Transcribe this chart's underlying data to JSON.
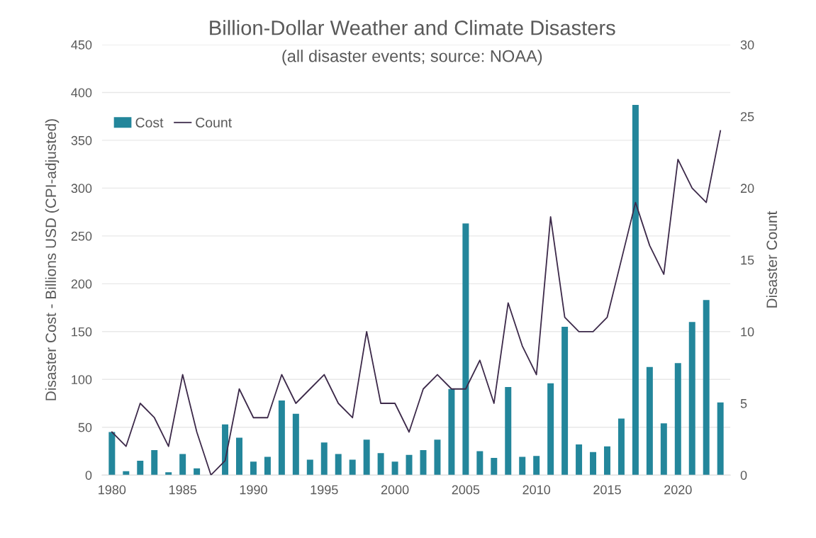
{
  "chart_data": {
    "type": "bar",
    "title": "Billion-Dollar Weather and Climate Disasters",
    "subtitle": "(all disaster events; source: NOAA)",
    "ylabel": "Disaster Cost - Billions USD (CPI-adjusted)",
    "y2label": "Disaster Count",
    "x": [
      1980,
      1981,
      1982,
      1983,
      1984,
      1985,
      1986,
      1987,
      1988,
      1989,
      1990,
      1991,
      1992,
      1993,
      1994,
      1995,
      1996,
      1997,
      1998,
      1999,
      2000,
      2001,
      2002,
      2003,
      2004,
      2005,
      2006,
      2007,
      2008,
      2009,
      2010,
      2011,
      2012,
      2013,
      2014,
      2015,
      2016,
      2017,
      2018,
      2019,
      2020,
      2021,
      2022,
      2023
    ],
    "series": [
      {
        "name": "Cost",
        "color": "#23869b",
        "values": [
          45,
          4,
          15,
          26,
          3,
          22,
          7,
          0,
          53,
          39,
          14,
          19,
          78,
          64,
          16,
          34,
          22,
          16,
          37,
          23,
          14,
          21,
          26,
          37,
          90,
          263,
          25,
          18,
          92,
          19,
          20,
          96,
          155,
          32,
          24,
          30,
          59,
          387,
          113,
          54,
          117,
          160,
          183,
          76
        ]
      },
      {
        "name": "Count",
        "type": "line",
        "axis": "y2",
        "color": "#3d2a4a",
        "values": [
          3,
          2,
          5,
          4,
          2,
          7,
          3,
          0,
          1,
          6,
          4,
          4,
          7,
          5,
          6,
          7,
          5,
          4,
          10,
          5,
          5,
          3,
          6,
          7,
          6,
          6,
          8,
          5,
          12,
          9,
          7,
          18,
          11,
          10,
          10,
          11,
          15,
          19,
          16,
          14,
          22,
          20,
          19,
          24
        ]
      }
    ],
    "xlim": [
      1979.3,
      2023.7
    ],
    "xticks": [
      1980,
      1985,
      1990,
      1995,
      2000,
      2005,
      2010,
      2015,
      2020
    ],
    "ylim": [
      0,
      450
    ],
    "yticks": [
      0,
      50,
      100,
      150,
      200,
      250,
      300,
      350,
      400,
      450
    ],
    "y2lim": [
      0,
      30
    ],
    "y2ticks": [
      0,
      5,
      10,
      15,
      20,
      25,
      30
    ],
    "grid": "y",
    "legend": "top left",
    "marker": "none",
    "line_style": "solid"
  }
}
